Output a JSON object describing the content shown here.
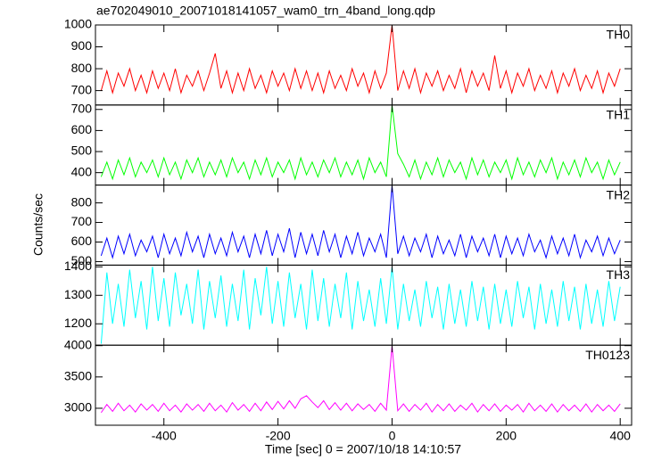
{
  "chart_data": {
    "type": "line",
    "title": "ae702049010_20071018141057_wam0_trn_4band_long.qdp",
    "xlabel": "Time [sec] 0 = 2007/10/18 14:10:57",
    "ylabel": "Counts/sec",
    "xlim": [
      -520,
      420
    ],
    "xticks": [
      -400,
      -200,
      0,
      200,
      400
    ],
    "x": [
      -510,
      -500,
      -490,
      -480,
      -470,
      -460,
      -450,
      -440,
      -430,
      -420,
      -410,
      -400,
      -390,
      -380,
      -370,
      -360,
      -350,
      -340,
      -330,
      -320,
      -310,
      -300,
      -290,
      -280,
      -270,
      -260,
      -250,
      -240,
      -230,
      -220,
      -210,
      -200,
      -190,
      -180,
      -170,
      -160,
      -150,
      -140,
      -130,
      -120,
      -110,
      -100,
      -90,
      -80,
      -70,
      -60,
      -50,
      -40,
      -30,
      -20,
      -10,
      0,
      10,
      20,
      30,
      40,
      50,
      60,
      70,
      80,
      90,
      100,
      110,
      120,
      130,
      140,
      150,
      160,
      170,
      180,
      190,
      200,
      210,
      220,
      230,
      240,
      250,
      260,
      270,
      280,
      290,
      300,
      310,
      320,
      330,
      340,
      350,
      360,
      370,
      380,
      390,
      400
    ],
    "series": [
      {
        "name": "TH0",
        "color": "#ff0000",
        "ylim": [
          634,
          1000
        ],
        "yticks": [
          700,
          800,
          900,
          1000
        ],
        "values": [
          700,
          790,
          690,
          780,
          720,
          800,
          700,
          770,
          690,
          790,
          710,
          780,
          700,
          800,
          690,
          770,
          720,
          790,
          700,
          780,
          870,
          710,
          790,
          690,
          780,
          700,
          800,
          710,
          770,
          690,
          790,
          720,
          780,
          700,
          800,
          710,
          790,
          700,
          780,
          690,
          790,
          710,
          770,
          700,
          800,
          720,
          780,
          690,
          790,
          710,
          780,
          1000,
          700,
          790,
          710,
          800,
          690,
          780,
          720,
          790,
          700,
          770,
          710,
          800,
          690,
          790,
          720,
          780,
          700,
          860,
          710,
          790,
          690,
          780,
          720,
          800,
          700,
          770,
          710,
          790,
          690,
          780,
          720,
          800,
          700,
          770,
          710,
          790,
          690,
          780,
          720,
          800
        ]
      },
      {
        "name": "TH1",
        "color": "#00ff00",
        "ylim": [
          341,
          721
        ],
        "yticks": [
          400,
          500,
          600,
          700
        ],
        "values": [
          380,
          450,
          370,
          460,
          390,
          470,
          380,
          450,
          400,
          460,
          380,
          470,
          390,
          450,
          370,
          460,
          400,
          470,
          380,
          450,
          390,
          460,
          380,
          470,
          400,
          450,
          370,
          460,
          390,
          470,
          380,
          450,
          400,
          460,
          370,
          470,
          390,
          450,
          380,
          460,
          400,
          470,
          380,
          450,
          390,
          460,
          370,
          470,
          400,
          450,
          380,
          720,
          490,
          440,
          380,
          460,
          370,
          450,
          390,
          470,
          380,
          460,
          400,
          450,
          370,
          470,
          390,
          460,
          380,
          450,
          400,
          460,
          370,
          470,
          390,
          450,
          380,
          460,
          400,
          470,
          370,
          450,
          390,
          460,
          380,
          470,
          400,
          450,
          370,
          460,
          390,
          450
        ]
      },
      {
        "name": "TH2",
        "color": "#0000ff",
        "ylim": [
          482,
          891
        ],
        "yticks": [
          500,
          600,
          700,
          800
        ],
        "values": [
          530,
          620,
          520,
          630,
          540,
          640,
          530,
          610,
          550,
          630,
          520,
          640,
          540,
          620,
          530,
          650,
          550,
          630,
          520,
          640,
          540,
          620,
          530,
          650,
          550,
          630,
          520,
          640,
          540,
          660,
          530,
          640,
          550,
          670,
          520,
          650,
          540,
          640,
          530,
          660,
          550,
          640,
          520,
          630,
          540,
          650,
          530,
          620,
          550,
          640,
          520,
          890,
          540,
          630,
          530,
          620,
          550,
          640,
          520,
          630,
          540,
          610,
          530,
          640,
          520,
          630,
          550,
          620,
          530,
          640,
          520,
          630,
          540,
          620,
          530,
          640,
          550,
          610,
          520,
          630,
          540,
          620,
          530,
          640,
          520,
          610,
          550,
          630,
          530,
          620,
          540,
          610
        ]
      },
      {
        "name": "TH3",
        "color": "#00ffff",
        "ylim": [
          1125,
          1406
        ],
        "yticks": [
          1200,
          1300,
          1400
        ],
        "values": [
          1130,
          1380,
          1200,
          1340,
          1190,
          1390,
          1220,
          1350,
          1180,
          1400,
          1210,
          1360,
          1190,
          1380,
          1230,
          1340,
          1200,
          1390,
          1180,
          1350,
          1220,
          1370,
          1190,
          1340,
          1210,
          1390,
          1180,
          1360,
          1230,
          1400,
          1200,
          1350,
          1190,
          1380,
          1220,
          1340,
          1180,
          1390,
          1210,
          1360,
          1190,
          1340,
          1220,
          1380,
          1180,
          1350,
          1210,
          1320,
          1190,
          1360,
          1200,
          1400,
          1180,
          1340,
          1210,
          1320,
          1190,
          1350,
          1220,
          1330,
          1180,
          1340,
          1200,
          1320,
          1190,
          1350,
          1210,
          1330,
          1180,
          1340,
          1200,
          1320,
          1190,
          1350,
          1220,
          1330,
          1180,
          1340,
          1200,
          1320,
          1190,
          1350,
          1210,
          1330,
          1180,
          1340,
          1200,
          1320,
          1190,
          1350,
          1210,
          1330
        ]
      },
      {
        "name": "TH0123",
        "color": "#ff00ff",
        "ylim": [
          2729,
          4007
        ],
        "yticks": [
          3000,
          3500,
          4000
        ],
        "values": [
          2930,
          3060,
          2950,
          3080,
          2960,
          3050,
          2940,
          3070,
          2970,
          3060,
          2950,
          3080,
          2960,
          3050,
          2940,
          3070,
          2970,
          3060,
          2950,
          3080,
          2960,
          3050,
          2940,
          3090,
          2970,
          3060,
          2950,
          3080,
          2960,
          3100,
          2980,
          3110,
          2990,
          3120,
          3000,
          3150,
          3200,
          3100,
          3010,
          3120,
          2980,
          3090,
          2970,
          3080,
          2960,
          3070,
          2980,
          3060,
          2950,
          3080,
          2970,
          4000,
          2960,
          3070,
          2950,
          3060,
          2970,
          3080,
          2940,
          3060,
          2960,
          3070,
          2950,
          3050,
          2970,
          3080,
          2940,
          3060,
          2960,
          3070,
          2950,
          3050,
          2970,
          3060,
          2940,
          3080,
          2960,
          3050,
          2950,
          3070,
          2940,
          3060,
          2960,
          3050,
          2950,
          3070,
          2940,
          3060,
          2960,
          3050,
          2950,
          3070
        ]
      }
    ]
  }
}
